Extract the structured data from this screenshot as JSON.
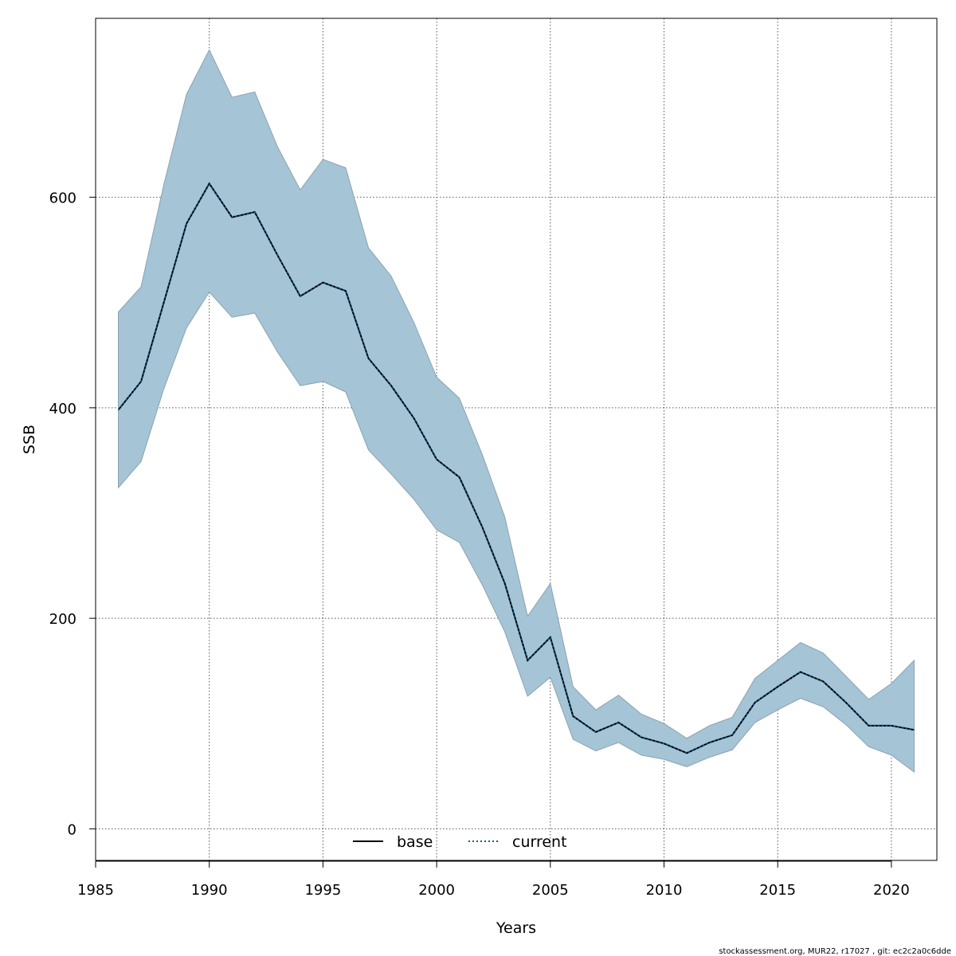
{
  "chart_data": {
    "type": "line",
    "title": "",
    "xlabel": "Years",
    "ylabel": "SSB",
    "xlim": [
      1985,
      2022
    ],
    "ylim": [
      -30,
      770
    ],
    "xticks": [
      1985,
      1990,
      1995,
      2000,
      2005,
      2010,
      2015,
      2020
    ],
    "yticks": [
      0,
      200,
      400,
      600
    ],
    "grid": true,
    "legend_position": "bottom-center",
    "x": [
      1986,
      1987,
      1988,
      1989,
      1990,
      1991,
      1992,
      1993,
      1994,
      1995,
      1996,
      1997,
      1998,
      1999,
      2000,
      2001,
      2002,
      2003,
      2004,
      2005,
      2006,
      2007,
      2008,
      2009,
      2010,
      2011,
      2012,
      2013,
      2014,
      2015,
      2016,
      2017,
      2018,
      2019,
      2020,
      2021
    ],
    "series": [
      {
        "name": "base",
        "style": "solid",
        "color": "#000000",
        "values": [
          398,
          425,
          500,
          575,
          613,
          581,
          586,
          545,
          506,
          519,
          511,
          447,
          421,
          390,
          351,
          334,
          287,
          233,
          160,
          182,
          107,
          92,
          101,
          87,
          81,
          72,
          82,
          89,
          120,
          135,
          149,
          140,
          120,
          98,
          98,
          94
        ]
      },
      {
        "name": "current",
        "style": "dotted",
        "color": "#0a5a8c",
        "values": [
          398,
          425,
          500,
          575,
          613,
          581,
          586,
          545,
          506,
          519,
          511,
          447,
          421,
          390,
          351,
          334,
          287,
          233,
          160,
          182,
          107,
          92,
          101,
          87,
          81,
          72,
          82,
          89,
          120,
          135,
          149,
          140,
          120,
          98,
          98,
          94
        ],
        "lower": [
          324,
          349,
          418,
          476,
          510,
          486,
          490,
          453,
          421,
          425,
          415,
          360,
          337,
          313,
          284,
          272,
          232,
          187,
          126,
          144,
          85,
          74,
          82,
          70,
          66,
          59,
          68,
          75,
          101,
          113,
          124,
          116,
          99,
          78,
          70,
          54
        ],
        "upper": [
          491,
          515,
          612,
          698,
          740,
          695,
          700,
          648,
          607,
          636,
          628,
          552,
          525,
          481,
          429,
          409,
          356,
          296,
          202,
          233,
          135,
          113,
          127,
          109,
          100,
          86,
          98,
          106,
          143,
          160,
          177,
          167,
          145,
          123,
          138,
          160
        ]
      }
    ],
    "band_color": "#a5c4d5",
    "band_edge_color": "#8aa3b2"
  },
  "footer": "stockassessment.org, MUR22, r17027 , git: ec2c2a0c6dde"
}
